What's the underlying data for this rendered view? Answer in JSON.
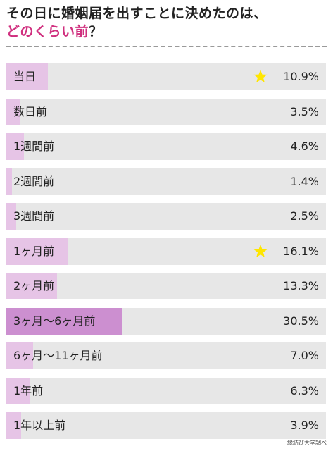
{
  "title": {
    "line1": "その日に婚姻届を出すことに決めたのは、",
    "line2_pink": "どのくらい前",
    "line2_mark": "？"
  },
  "chart_data": {
    "type": "bar",
    "orientation": "horizontal",
    "categories": [
      "当日",
      "数日前",
      "1週間前",
      "2週間前",
      "3週間前",
      "1ヶ月前",
      "2ヶ月前",
      "3ヶ月〜6ヶ月前",
      "6ヶ月〜11ヶ月前",
      "1年前",
      "1年以上前"
    ],
    "values": [
      10.9,
      3.5,
      4.6,
      1.4,
      2.5,
      16.1,
      13.3,
      30.5,
      7.0,
      6.3,
      3.9
    ],
    "value_labels": [
      "10.9%",
      "3.5%",
      "4.6%",
      "1.4%",
      "2.5%",
      "16.1%",
      "13.3%",
      "30.5%",
      "7.0%",
      "6.3%",
      "3.9%"
    ],
    "starred": [
      true,
      false,
      false,
      false,
      false,
      true,
      false,
      false,
      false,
      false,
      false
    ],
    "highlighted_index": 7,
    "xlim": [
      0,
      84
    ],
    "title": "",
    "xlabel": "",
    "ylabel": "",
    "grid": false
  },
  "colors": {
    "track": "#e7e7e7",
    "bar": "#e6c4e6",
    "bar_highlight": "#cc8fd0",
    "title_accent": "#d0307f",
    "star": "#ffe600"
  },
  "icons": {
    "star": "star-icon"
  },
  "credit": "縁結び大学調べ"
}
